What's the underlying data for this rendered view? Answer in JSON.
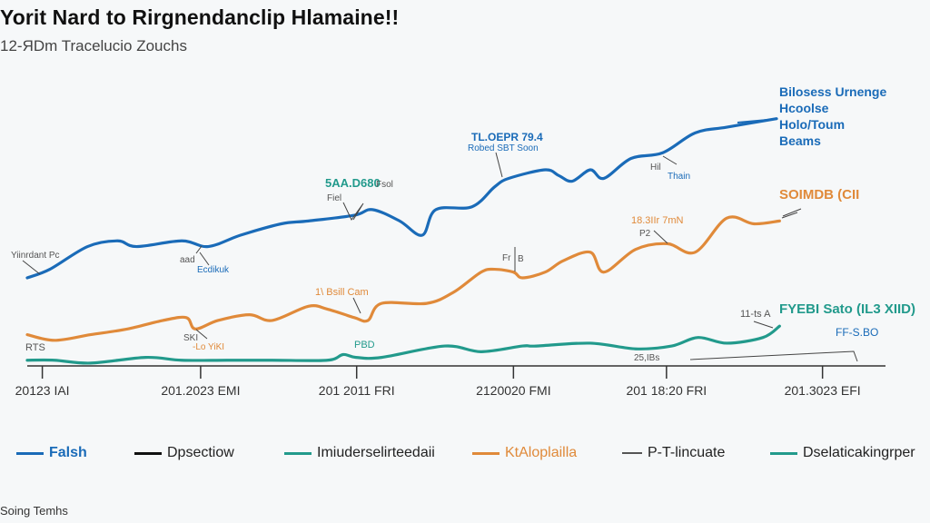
{
  "header": {
    "title": "Yorit Nard to Rirgnendanclip Hlamaine!!",
    "subtitle": "12-ЯDm Tracelucio Zouchs"
  },
  "footer": {
    "text": "Soing Temhs"
  },
  "colors": {
    "blue": "#1a6bb8",
    "orange": "#e08a3a",
    "teal": "#229a8c",
    "black": "#111111",
    "gray": "#555555",
    "axis": "#333333"
  },
  "legend": [
    {
      "label": "Falsh",
      "color": "#1a6bb8",
      "text_color": "#1a6bb8",
      "bold": true
    },
    {
      "label": "Dpsectiow",
      "color": "#111111",
      "text_color": "#222222",
      "bold": false
    },
    {
      "label": "Imiuderselirteedaii",
      "color": "#229a8c",
      "text_color": "#222222",
      "bold": false
    },
    {
      "label": "KtAloplailla",
      "color": "#e08a3a",
      "text_color": "#e08a3a",
      "bold": false
    },
    {
      "label": "P-T-lincuate",
      "color": "#555555",
      "text_color": "#222222",
      "bold": false
    },
    {
      "label": "Dselaticakingrper",
      "color": "#229a8c",
      "text_color": "#222222",
      "bold": false
    }
  ],
  "chart_data": {
    "type": "line",
    "title": "Yorit Nard to Rirgnendanclip Hlamaine!!",
    "subtitle": "12-ЯDm Tracelucio Zouchs",
    "xlabel": "",
    "ylabel": "",
    "grid": false,
    "legend_position": "bottom",
    "x_ticks": [
      "20123 IAI",
      "201.2023 EMI",
      "201 2011 FRI",
      "2120020 FMI",
      "201 18:20 FRI",
      "201.3023 EFI"
    ],
    "x_tick_positions": [
      2,
      23,
      43.7,
      64.5,
      84.8,
      105.5
    ],
    "xlim": [
      0,
      114
    ],
    "ylim": [
      0,
      100
    ],
    "series": [
      {
        "name": "Blue series",
        "color": "#1a6bb8",
        "end_label": [
          "Bilosess Urnenge",
          "Hcoolse",
          "Holo/Toum",
          "Beams"
        ],
        "x": [
          0,
          3,
          8,
          12,
          14.5,
          20.5,
          24,
          28.3,
          33.7,
          37.3,
          43.4,
          45.8,
          49.4,
          52.4,
          54.2,
          59,
          62,
          63.9,
          68.7,
          70.5,
          72.3,
          74.7,
          76.5,
          80.1,
          84.3,
          88.6,
          92.8,
          99.4
        ],
        "y": [
          31,
          34,
          42,
          44,
          42,
          44,
          42,
          46,
          50,
          51,
          53,
          55,
          51,
          46,
          55,
          56,
          63,
          66,
          69,
          67,
          65,
          69,
          66,
          73,
          75,
          82,
          84,
          87
        ]
      },
      {
        "name": "Orange series",
        "color": "#e08a3a",
        "end_label": [
          "SOIMDB (CII"
        ],
        "x": [
          0,
          3.6,
          8.4,
          13.3,
          18,
          21.1,
          22.3,
          25.3,
          29.5,
          32.5,
          37.3,
          39.8,
          43.4,
          45.2,
          47,
          53,
          56.6,
          60.2,
          62,
          64.5,
          65.7,
          68.7,
          71.1,
          74.7,
          76.5,
          80.7,
          84.9,
          88.6,
          92.8,
          96.4,
          99.8
        ],
        "y": [
          11,
          9,
          11,
          13,
          16,
          17,
          13,
          16,
          18,
          16,
          21,
          20,
          17,
          16,
          22,
          22,
          26,
          33,
          34,
          33,
          31,
          33,
          37,
          40,
          33,
          41,
          43,
          40,
          52,
          50,
          51
        ]
      },
      {
        "name": "Teal series",
        "color": "#229a8c",
        "end_label": [
          "FYEBI Sato (IL3 XIID)"
        ],
        "x": [
          0,
          3.6,
          8.4,
          15.7,
          20.5,
          26.5,
          32.5,
          39.8,
          41.9,
          43.6,
          47,
          55.4,
          60.2,
          65.7,
          67.5,
          74.7,
          80.7,
          85.5,
          89,
          92.8,
          97.6,
          99.8
        ],
        "y": [
          2,
          2,
          1,
          3,
          2,
          2,
          2,
          2,
          4,
          3,
          3,
          7,
          5,
          7,
          7,
          8,
          6,
          7,
          10,
          8,
          10,
          14
        ]
      }
    ],
    "annotations": [
      {
        "text": "Yiinrdant Pc",
        "series": "Blue series",
        "color": "#555555",
        "x": 0.6,
        "y": 32
      },
      {
        "text": "aad",
        "series": "Blue series",
        "color": "#555555",
        "x": 22.5,
        "y": 42
      },
      {
        "text": "Ecdikuk",
        "series": "Blue series",
        "color": "#1a6bb8",
        "x": 22.5,
        "y": 42
      },
      {
        "text": "5AA.D680",
        "series": "Blue series",
        "color": "#229a8c",
        "x": 42,
        "y": 52
      },
      {
        "text": "Fsol",
        "series": "Blue series",
        "color": "#555555",
        "x": 42,
        "y": 52
      },
      {
        "text": "Fiel",
        "series": "Blue series",
        "color": "#555555",
        "x": 42,
        "y": 52
      },
      {
        "text": "TL.OEPR 79.4",
        "series": "Blue series",
        "color": "#1a6bb8",
        "x": 62.5,
        "y": 64
      },
      {
        "text": "Robed SBT Soon",
        "series": "Blue series",
        "color": "#1a6bb8",
        "x": 62.5,
        "y": 64
      },
      {
        "text": "Hil",
        "series": "Blue series",
        "color": "#555555",
        "x": 84.3,
        "y": 75
      },
      {
        "text": "Thain",
        "series": "Blue series",
        "color": "#1a6bb8",
        "x": 84.3,
        "y": 75
      },
      {
        "text": "RTS",
        "series": "Orange series",
        "color": "#555555",
        "x": 0,
        "y": 9
      },
      {
        "text": "SKI",
        "series": "Orange series",
        "color": "#555555",
        "x": 22.3,
        "y": 13
      },
      {
        "text": "-Lo YiKI",
        "series": "Orange series",
        "color": "#e08a3a",
        "x": 22.3,
        "y": 13
      },
      {
        "text": "1\\ Bsill Cam",
        "series": "Orange series",
        "color": "#e08a3a",
        "x": 44,
        "y": 17
      },
      {
        "text": "Fr",
        "series": "Orange series",
        "color": "#555555",
        "x": 64.5,
        "y": 33
      },
      {
        "text": "B",
        "series": "Orange series",
        "color": "#555555",
        "x": 64.5,
        "y": 33
      },
      {
        "text": "18.3IIr 7mN",
        "series": "Orange series",
        "color": "#e08a3a",
        "x": 84.5,
        "y": 42
      },
      {
        "text": "P2",
        "series": "Orange series",
        "color": "#555555",
        "x": 84.5,
        "y": 42
      },
      {
        "text": "PBD",
        "series": "Teal series",
        "color": "#229a8c",
        "x": 43.6,
        "y": 3
      },
      {
        "text": "11-ts A",
        "series": "Teal series",
        "color": "#555555",
        "x": 99.8,
        "y": 14
      },
      {
        "text": "FF-S.BO",
        "series": "Teal series",
        "color": "#1a6bb8",
        "x": 107,
        "y": 6
      },
      {
        "text": "25,IBs",
        "series": "Teal series",
        "color": "#555555",
        "x": 84.8,
        "y": 0
      }
    ]
  }
}
